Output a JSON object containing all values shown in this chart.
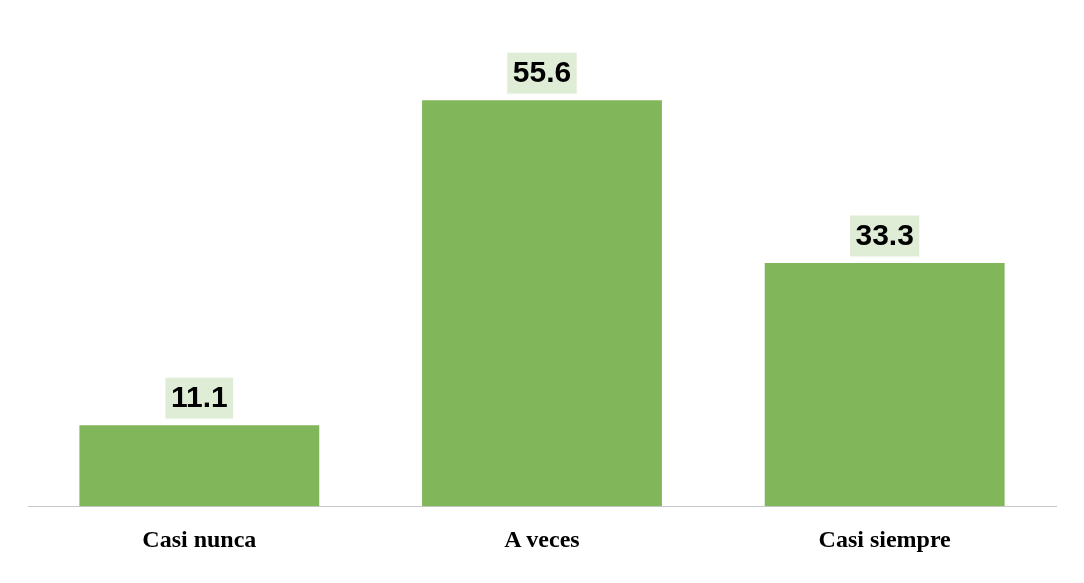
{
  "chart_data": {
    "type": "bar",
    "categories": [
      "Casi nunca",
      "A veces",
      "Casi siempre"
    ],
    "values": [
      11.1,
      55.6,
      33.3
    ],
    "color": "#82b65a",
    "data_labels": true,
    "grid": false,
    "legend": false
  }
}
